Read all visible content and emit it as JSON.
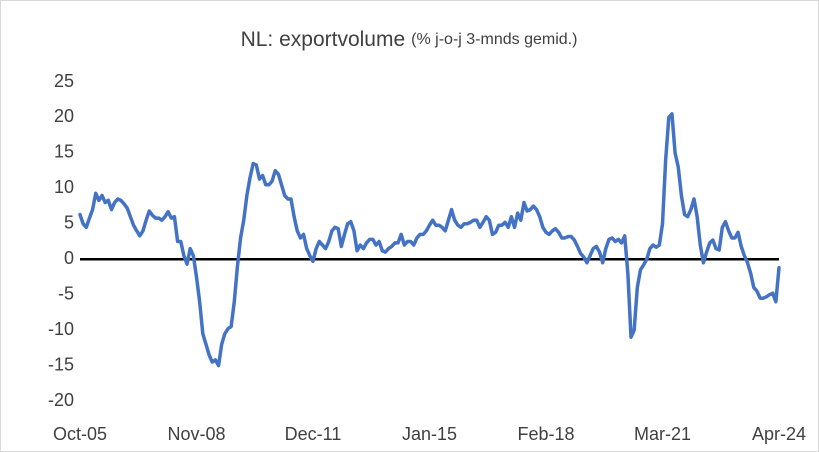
{
  "chart_data": {
    "type": "line",
    "title": "NL: exportvolume",
    "subtitle": "(% j-o-j 3-mnds gemid.)",
    "color": "#4472c4",
    "grid": false,
    "ylim": [
      -20,
      25
    ],
    "yticks": [
      -20,
      -15,
      -10,
      -5,
      0,
      5,
      10,
      15,
      20,
      25
    ],
    "categories": [
      "Oct-05",
      null,
      null,
      null,
      null,
      null,
      null,
      null,
      null,
      null,
      null,
      null,
      null,
      null,
      null,
      null,
      null,
      null,
      null,
      null,
      null,
      null,
      null,
      null,
      null,
      null,
      null,
      null,
      null,
      null,
      null,
      null,
      null,
      null,
      null,
      null,
      null,
      "Nov-08",
      null,
      null,
      null,
      null,
      null,
      null,
      null,
      null,
      null,
      null,
      null,
      null,
      null,
      null,
      null,
      null,
      null,
      null,
      null,
      null,
      null,
      null,
      null,
      null,
      null,
      null,
      null,
      null,
      null,
      null,
      null,
      null,
      null,
      null,
      null,
      null,
      "Dec-11",
      null,
      null,
      null,
      null,
      null,
      null,
      null,
      null,
      null,
      null,
      null,
      null,
      null,
      null,
      null,
      null,
      null,
      null,
      null,
      null,
      null,
      null,
      null,
      null,
      null,
      null,
      null,
      null,
      null,
      null,
      null,
      null,
      null,
      null,
      null,
      null,
      "Jan-15",
      null,
      null,
      null,
      null,
      null,
      null,
      null,
      null,
      null,
      null,
      null,
      null,
      null,
      null,
      null,
      null,
      null,
      null,
      null,
      null,
      null,
      null,
      null,
      null,
      null,
      null,
      null,
      null,
      null,
      null,
      null,
      null,
      null,
      null,
      null,
      null,
      "Feb-18",
      null,
      null,
      null,
      null,
      null,
      null,
      null,
      null,
      null,
      null,
      null,
      null,
      null,
      null,
      null,
      null,
      null,
      null,
      null,
      null,
      null,
      null,
      null,
      null,
      null,
      null,
      null,
      null,
      null,
      null,
      null,
      null,
      null,
      null,
      null,
      null,
      "Mar-21",
      null,
      null,
      null,
      null,
      null,
      null,
      null,
      null,
      null,
      null,
      null,
      null,
      null,
      null,
      null,
      null,
      null,
      null,
      null,
      null,
      null,
      null,
      null,
      null,
      null,
      null,
      null,
      null,
      null,
      null,
      null,
      null,
      null,
      null,
      null,
      null,
      "Apr-24"
    ],
    "values": [
      6.3,
      5,
      4.5,
      5.8,
      7,
      9.3,
      8.3,
      9,
      8,
      8.3,
      7,
      8,
      8.5,
      8.3,
      7.8,
      7.2,
      6,
      4.8,
      4,
      3.3,
      4,
      5.5,
      6.8,
      6.2,
      5.8,
      5.8,
      5.5,
      6,
      6.7,
      5.8,
      6,
      2.5,
      2.5,
      0.5,
      -0.7,
      1.5,
      0.5,
      -2.5,
      -6,
      -10.5,
      -12,
      -13.5,
      -14.5,
      -14.2,
      -15,
      -12,
      -10.5,
      -9.8,
      -9.5,
      -6,
      -1,
      3,
      5.5,
      9,
      11.5,
      13.5,
      13.3,
      11.3,
      11.8,
      10.5,
      10.5,
      11,
      12.5,
      12,
      10.5,
      9,
      8.5,
      8.5,
      6,
      4,
      3,
      3.5,
      1.5,
      0.5,
      -0.3,
      1.5,
      2.5,
      2,
      1.5,
      2.5,
      4,
      4.5,
      4.3,
      1.8,
      3.5,
      5,
      5.3,
      4,
      1.2,
      2,
      1.5,
      2.3,
      2.8,
      2.8,
      2,
      2.5,
      1.2,
      1,
      1.5,
      1.8,
      2.3,
      2.3,
      3.5,
      2,
      2.5,
      2.5,
      2,
      3,
      3.5,
      3.5,
      4,
      4.8,
      5.5,
      4.8,
      4.8,
      4.5,
      4,
      5.5,
      7,
      5.5,
      4.8,
      4.5,
      5,
      5,
      5.2,
      5.5,
      5.5,
      4.5,
      5.2,
      6,
      5.5,
      3.5,
      3.8,
      4.8,
      4.8,
      5.2,
      4.5,
      6,
      4.5,
      6.5,
      5.5,
      8,
      6.8,
      7,
      7.5,
      7,
      6,
      4.5,
      3.8,
      3.5,
      4,
      4.3,
      3.8,
      3,
      3,
      3.2,
      3.2,
      2.7,
      1.8,
      0.8,
      0.3,
      -0.5,
      0.5,
      1.5,
      1.8,
      1,
      -0.5,
      1.5,
      2.8,
      3,
      2.5,
      2.8,
      2.3,
      3.3,
      -2,
      -11,
      -10,
      -4,
      -1.5,
      -0.8,
      0,
      1.5,
      2,
      1.7,
      2,
      5,
      14,
      20,
      20.5,
      15,
      13,
      9,
      6.3,
      6,
      7,
      8.5,
      6,
      2,
      -0.5,
      1,
      2.3,
      2.7,
      1.5,
      1.3,
      4.5,
      5.3,
      4,
      3,
      3,
      3.8,
      1.8,
      0.5,
      -0.5,
      -2,
      -4,
      -4.5,
      -5.5,
      -5.5,
      -5.3,
      -5,
      -4.8,
      -6,
      -1.2
    ]
  }
}
